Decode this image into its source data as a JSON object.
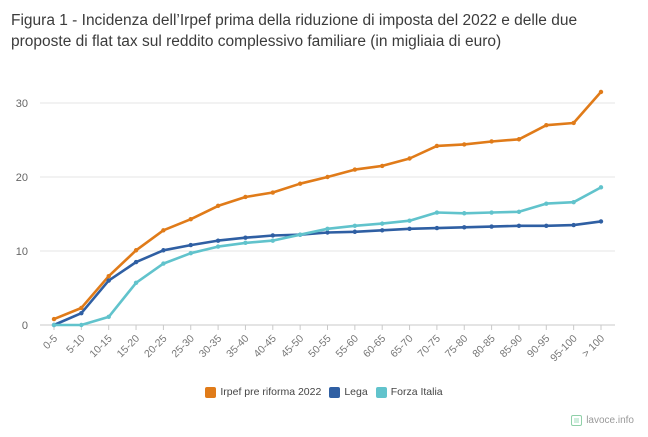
{
  "title": "Figura 1 - Incidenza dell’Irpef prima della riduzione di imposta del 2022 e delle due proposte di flat tax sul reddito complessivo familiare (in migliaia di euro)",
  "brand": "lavoce.info",
  "chart_data": {
    "type": "line",
    "title": "Figura 1 - Incidenza dell’Irpef prima della riduzione di imposta del 2022 e delle due proposte di flat tax sul reddito complessivo familiare (in migliaia di euro)",
    "xlabel": "",
    "ylabel": "",
    "ylim": [
      0,
      32
    ],
    "yticks": [
      0,
      10,
      20,
      30
    ],
    "grid": true,
    "legend_position": "bottom",
    "categories": [
      "0-5",
      "5-10",
      "10-15",
      "15-20",
      "20-25",
      "25-30",
      "30-35",
      "35-40",
      "40-45",
      "45-50",
      "50-55",
      "55-60",
      "60-65",
      "65-70",
      "70-75",
      "75-80",
      "80-85",
      "85-90",
      "90-95",
      "95-100",
      "> 100"
    ],
    "series": [
      {
        "name": "Irpef pre riforma 2022",
        "color": "#e07b19",
        "values": [
          0.8,
          2.3,
          6.6,
          10.1,
          12.8,
          14.3,
          16.1,
          17.3,
          17.9,
          19.1,
          20.0,
          21.0,
          21.5,
          22.5,
          24.2,
          24.4,
          24.8,
          25.1,
          27.0,
          27.3,
          31.5
        ]
      },
      {
        "name": "Lega",
        "color": "#2f5fa3",
        "values": [
          0,
          1.6,
          6.0,
          8.5,
          10.1,
          10.8,
          11.4,
          11.8,
          12.1,
          12.2,
          12.5,
          12.6,
          12.8,
          13.0,
          13.1,
          13.2,
          13.3,
          13.4,
          13.4,
          13.5,
          14.0
        ]
      },
      {
        "name": "Forza Italia",
        "color": "#61c3cc",
        "values": [
          0,
          0,
          1.1,
          5.7,
          8.3,
          9.7,
          10.6,
          11.1,
          11.4,
          12.2,
          13.0,
          13.4,
          13.7,
          14.1,
          15.2,
          15.1,
          15.2,
          15.3,
          16.4,
          16.6,
          18.6
        ]
      }
    ]
  }
}
